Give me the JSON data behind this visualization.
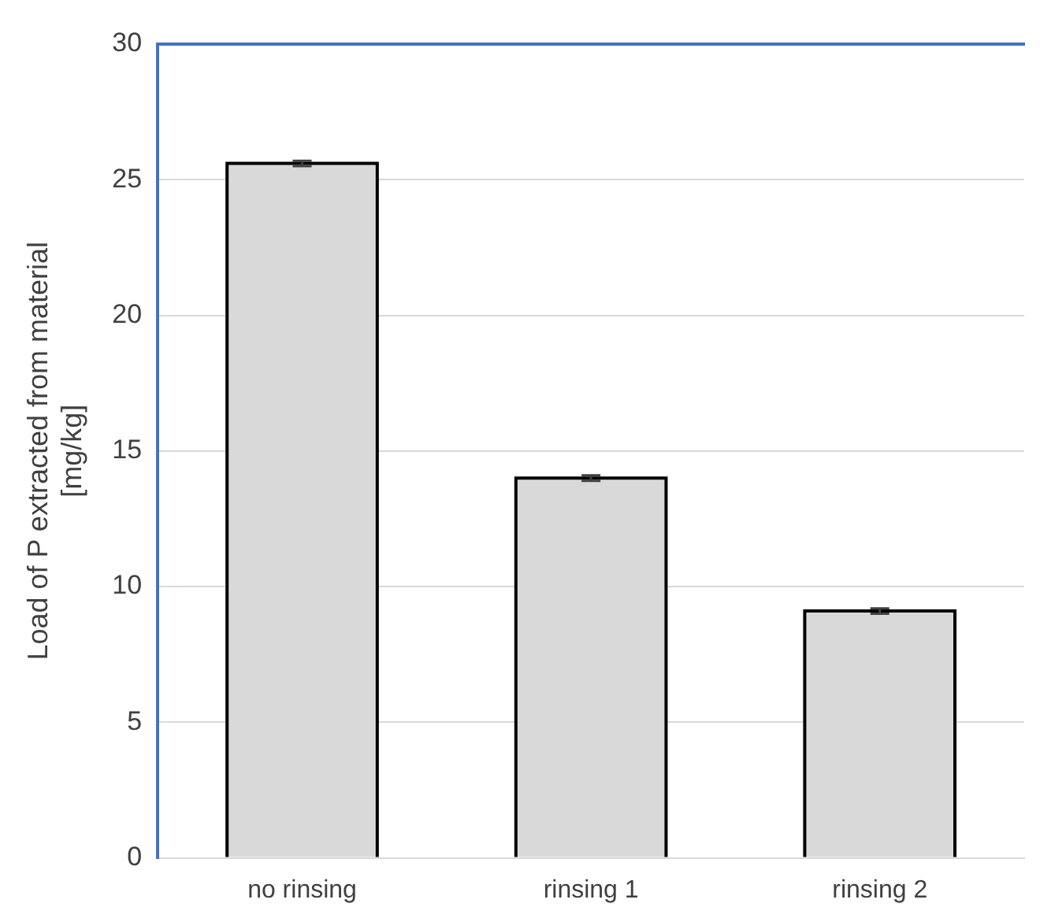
{
  "chart_data": {
    "type": "bar",
    "ylabel": "Load of P extracted from material\n[mg/kg]",
    "categories": [
      "no rinsing",
      "rinsing 1",
      "rinsing 2"
    ],
    "values": [
      25.6,
      14.0,
      9.1
    ],
    "errors": [
      0.1,
      0.1,
      0.1
    ],
    "color": "#d9d9d9",
    "ylim": [
      0,
      30
    ],
    "yticks": [
      0,
      5,
      10,
      15,
      20,
      25,
      30
    ],
    "grid": "y",
    "legend": false
  }
}
